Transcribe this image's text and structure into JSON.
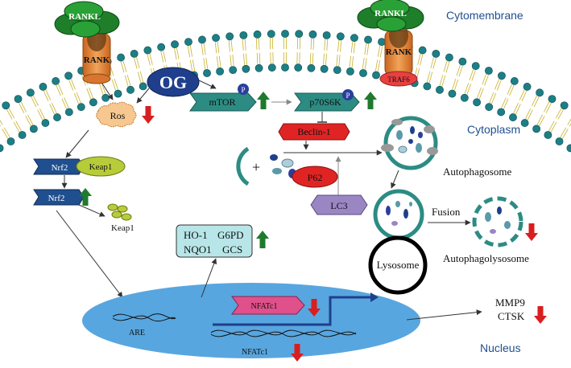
{
  "regions": {
    "cytomembrane": "Cytomembrane",
    "cytoplasm": "Cytoplasm",
    "nucleus": "Nucleus"
  },
  "receptors": {
    "ligand": "RANKL",
    "receptor": "RANK",
    "adaptor": "TRAF6"
  },
  "drug": "OG",
  "phospho": "P",
  "proteins": {
    "ros": "Ros",
    "mtor": "mTOR",
    "p70s6k": "p70S6K",
    "beclin1": "Beclin-1",
    "p62": "P62",
    "lc3": "LC3",
    "nrf2": "Nrf2",
    "keap1": "Keap1",
    "nfatc1": "NFATc1"
  },
  "plus_sign": "+",
  "genes": {
    "ho1": "HO-1",
    "g6pd": "G6PD",
    "nqo1": "NQO1",
    "gcs": "GCS",
    "are": "ARE",
    "mmp9": "MMP9",
    "ctsk": "CTSK"
  },
  "labels": {
    "autophagosome": "Autophagosome",
    "fusion": "Fusion",
    "lysosome": "Lysosome",
    "autophagolysosome": "Autophagolysosome"
  },
  "colors": {
    "up_arrow": "#1f7a2e",
    "down_arrow": "#d81e1e",
    "membrane_head": "#1c7f86",
    "teal_box": "#2c8c83",
    "red_box": "#e02424",
    "lc3_box": "#9a86c2",
    "nucleus": "#58a6df",
    "keap1": "#b8cc3a",
    "nrf2": "#1f4f8f",
    "og": "#1f3f8c"
  }
}
